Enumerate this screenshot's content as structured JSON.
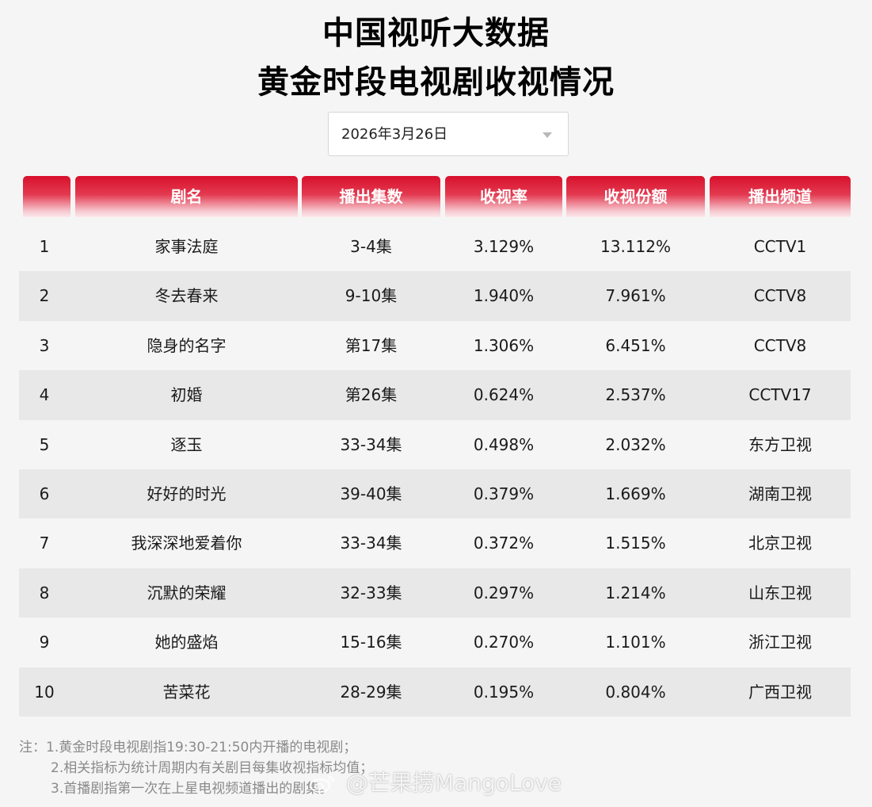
{
  "title": {
    "line1": "中国视听大数据",
    "line2": "黄金时段电视剧收视情况"
  },
  "date_select": {
    "value": "2026年3月26日"
  },
  "table": {
    "headers": [
      "",
      "剧名",
      "播出集数",
      "收视率",
      "收视份额",
      "播出频道"
    ],
    "rows": [
      {
        "rank": "1",
        "name": "家事法庭",
        "episodes": "3-4集",
        "rating": "3.129%",
        "share": "13.112%",
        "channel": "CCTV1"
      },
      {
        "rank": "2",
        "name": "冬去春来",
        "episodes": "9-10集",
        "rating": "1.940%",
        "share": "7.961%",
        "channel": "CCTV8"
      },
      {
        "rank": "3",
        "name": "隐身的名字",
        "episodes": "第17集",
        "rating": "1.306%",
        "share": "6.451%",
        "channel": "CCTV8"
      },
      {
        "rank": "4",
        "name": "初婚",
        "episodes": "第26集",
        "rating": "0.624%",
        "share": "2.537%",
        "channel": "CCTV17"
      },
      {
        "rank": "5",
        "name": "逐玉",
        "episodes": "33-34集",
        "rating": "0.498%",
        "share": "2.032%",
        "channel": "东方卫视"
      },
      {
        "rank": "6",
        "name": "好好的时光",
        "episodes": "39-40集",
        "rating": "0.379%",
        "share": "1.669%",
        "channel": "湖南卫视"
      },
      {
        "rank": "7",
        "name": "我深深地爱着你",
        "episodes": "33-34集",
        "rating": "0.372%",
        "share": "1.515%",
        "channel": "北京卫视"
      },
      {
        "rank": "8",
        "name": "沉默的荣耀",
        "episodes": "32-33集",
        "rating": "0.297%",
        "share": "1.214%",
        "channel": "山东卫视"
      },
      {
        "rank": "9",
        "name": "她的盛焰",
        "episodes": "15-16集",
        "rating": "0.270%",
        "share": "1.101%",
        "channel": "浙江卫视"
      },
      {
        "rank": "10",
        "name": "苦菜花",
        "episodes": "28-29集",
        "rating": "0.195%",
        "share": "0.804%",
        "channel": "广西卫视"
      }
    ]
  },
  "notes": {
    "line1": "注：1.黄金时段电视剧指19:30-21:50内开播的电视剧；",
    "line2": "2.相关指标为统计周期内有关剧目每集收视指标均值；",
    "line3": "3.首播剧指第一次在上星电视频道播出的剧集。"
  },
  "watermark": {
    "text": "@芒果捞MangoLove",
    "logo_icon": "weibo-logo-icon"
  },
  "colors": {
    "header_red": "#d8102c",
    "row_alt": "#e8e8e8",
    "background": "#f5f5f5"
  }
}
